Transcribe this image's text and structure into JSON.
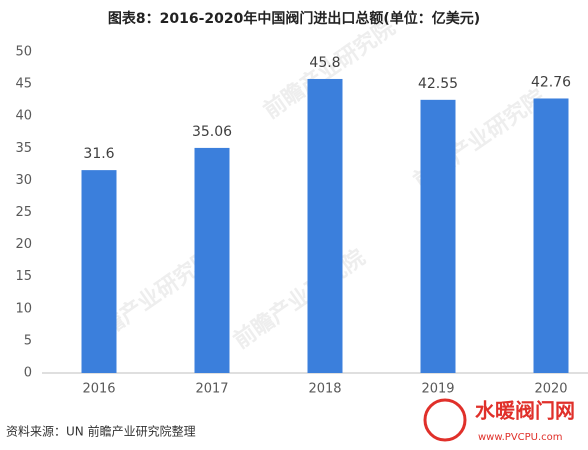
{
  "chart_data": {
    "type": "bar",
    "title": "图表8：2016-2020年中国阀门进出口总额(单位：亿美元)",
    "categories": [
      "2016",
      "2017",
      "2018",
      "2019",
      "2020"
    ],
    "values": [
      31.6,
      35.06,
      45.8,
      42.55,
      42.76
    ],
    "color": "#3b7fdc",
    "ylim": [
      0,
      50
    ],
    "yticks": [
      0,
      5,
      10,
      15,
      20,
      25,
      30,
      35,
      40,
      45,
      50
    ],
    "grid": false,
    "source": "资料来源：UN 前瞻产业研究院整理",
    "watermark": "前瞻产业研究院",
    "logo_name": "水暖阀门网",
    "logo_url": "www.PVCPU.com"
  }
}
